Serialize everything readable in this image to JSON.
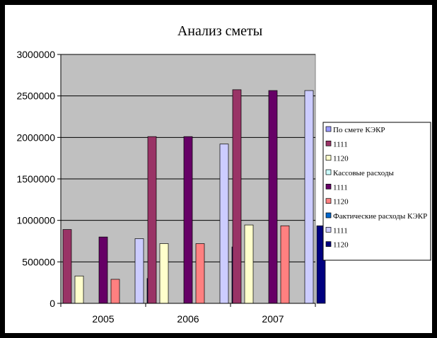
{
  "chart_data": {
    "type": "bar",
    "title": "Анализ сметы",
    "xlabel": "",
    "ylabel": "",
    "categories": [
      "2005",
      "2006",
      "2007"
    ],
    "ylim": [
      0,
      3000000
    ],
    "yticks": [
      0,
      500000,
      1000000,
      1500000,
      2000000,
      2500000,
      3000000
    ],
    "grid": true,
    "legend_position": "right",
    "plot_background": "#c0c0c0",
    "series": [
      {
        "name": "По смете КЭКР",
        "color": "#9999ff",
        "values": [
          0,
          0,
          0
        ]
      },
      {
        "name": "1111",
        "color": "#993366",
        "values": [
          890000,
          2010000,
          2575000
        ]
      },
      {
        "name": "1120",
        "color": "#ffffcc",
        "values": [
          330000,
          720000,
          945000
        ]
      },
      {
        "name": "Кассовые расходы",
        "color": "#ccffff",
        "values": [
          0,
          0,
          0
        ]
      },
      {
        "name": "1111",
        "color": "#660066",
        "values": [
          800000,
          2010000,
          2565000
        ]
      },
      {
        "name": "1120",
        "color": "#ff8080",
        "values": [
          290000,
          720000,
          935000
        ]
      },
      {
        "name": "Фактические расходы КЭКР",
        "color": "#0066cc",
        "values": [
          0,
          0,
          0
        ]
      },
      {
        "name": "1111",
        "color": "#ccccff",
        "values": [
          780000,
          1920000,
          2565000
        ]
      },
      {
        "name": "1120",
        "color": "#000080",
        "values": [
          300000,
          680000,
          935000
        ]
      }
    ]
  }
}
